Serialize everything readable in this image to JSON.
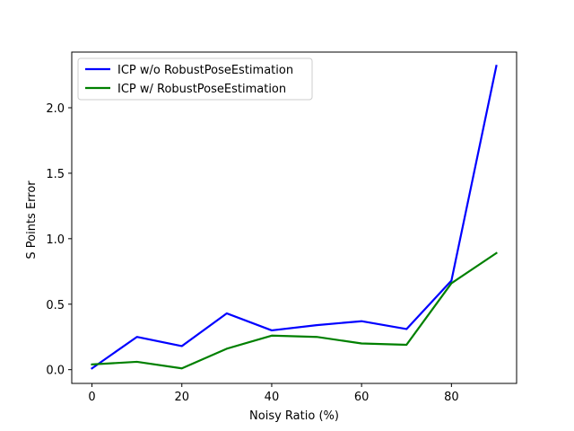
{
  "chart_data": {
    "type": "line",
    "title": "",
    "xlabel": "Noisy Ratio (%)",
    "ylabel": "S Points Error",
    "xlim": [
      -4.5,
      94.5
    ],
    "ylim": [
      -0.105,
      2.425
    ],
    "x_ticks": [
      0,
      20,
      40,
      60,
      80
    ],
    "y_ticks": [
      0.0,
      0.5,
      1.0,
      1.5,
      2.0
    ],
    "x_tick_labels": [
      "0",
      "20",
      "40",
      "60",
      "80"
    ],
    "y_tick_labels": [
      "0.0",
      "0.5",
      "1.0",
      "1.5",
      "2.0"
    ],
    "grid": false,
    "legend_position": "upper-left",
    "x": [
      0,
      10,
      20,
      30,
      40,
      50,
      60,
      70,
      80,
      90
    ],
    "series": [
      {
        "name": "ICP w/o RobustPoseEstimation",
        "color": "#0000ff",
        "values": [
          0.01,
          0.25,
          0.18,
          0.43,
          0.3,
          0.34,
          0.37,
          0.31,
          0.68,
          2.32
        ]
      },
      {
        "name": "ICP w/ RobustPoseEstimation",
        "color": "#008000",
        "values": [
          0.04,
          0.06,
          0.01,
          0.16,
          0.26,
          0.25,
          0.2,
          0.19,
          0.66,
          0.89
        ]
      }
    ]
  }
}
